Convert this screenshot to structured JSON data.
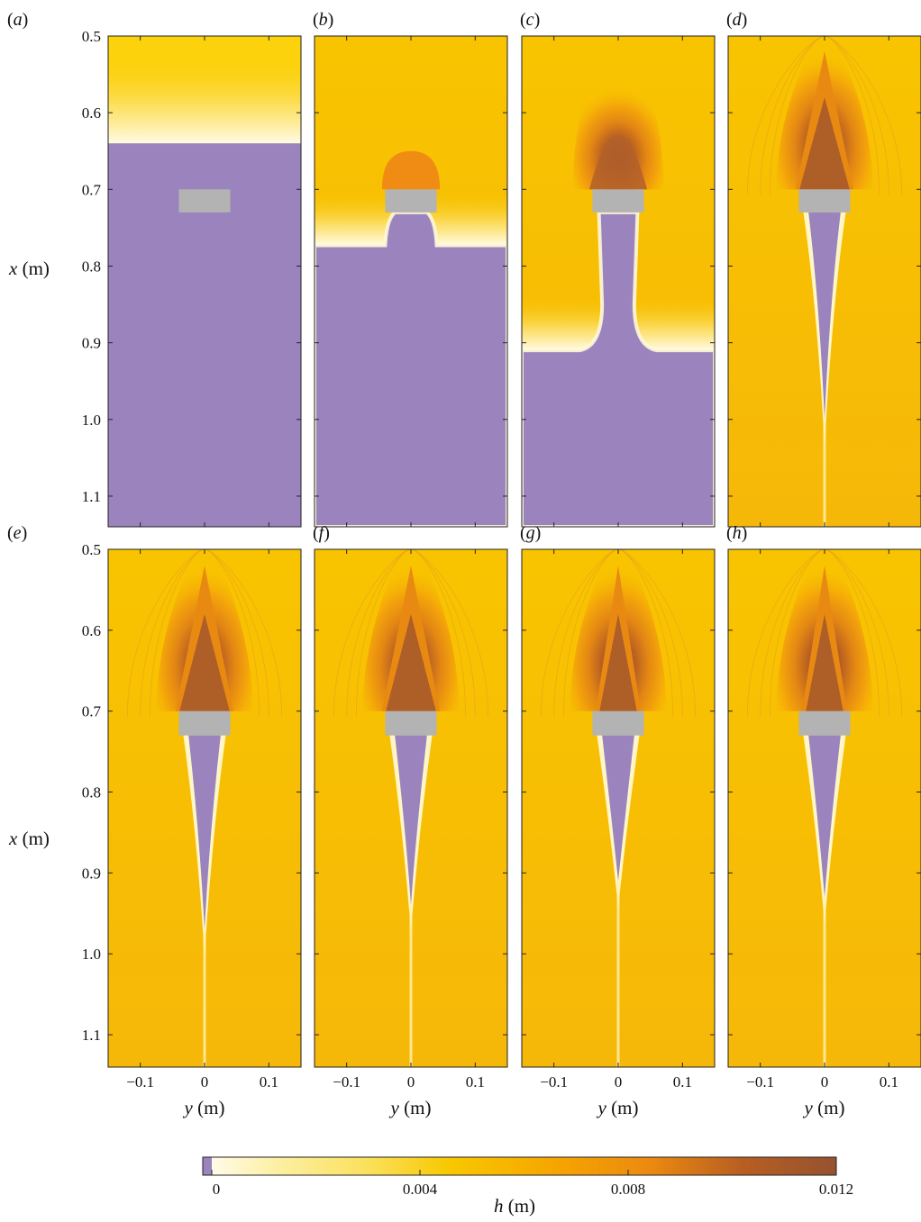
{
  "chart_data": [
    {
      "type": "heatmap",
      "panel_label": "(a)",
      "description_visible": "dry bed advancing front",
      "front_x": 0.64,
      "tail": "none"
    },
    {
      "type": "heatmap",
      "panel_label": "(b)",
      "front_x": 0.773,
      "tail": "none"
    },
    {
      "type": "heatmap",
      "panel_label": "(c)",
      "front_x": 0.91,
      "tail": "none"
    },
    {
      "type": "heatmap",
      "panel_label": "(d)",
      "tail_end_x": 1.0,
      "tail": "wake"
    },
    {
      "type": "heatmap",
      "panel_label": "(e)",
      "tail_end_x": 0.97,
      "tail": "wake"
    },
    {
      "type": "heatmap",
      "panel_label": "(f)",
      "tail_end_x": 0.94,
      "tail": "wake"
    },
    {
      "type": "heatmap",
      "panel_label": "(g)",
      "tail_end_x": 0.91,
      "tail": "wake"
    },
    {
      "type": "heatmap",
      "panel_label": "(h)",
      "tail_end_x": 0.93,
      "tail": "wake"
    }
  ],
  "axes": {
    "x_label": "x (m)",
    "x_var": "x",
    "x_unit": "(m)",
    "y_label": "y (m)",
    "y_var": "y",
    "y_unit": "(m)",
    "x_range": [
      0.5,
      1.14
    ],
    "y_range": [
      -0.15,
      0.15
    ],
    "x_ticks": [
      "0.5",
      "0.6",
      "0.7",
      "0.8",
      "0.9",
      "1.0",
      "1.1"
    ],
    "x_tick_values": [
      0.5,
      0.6,
      0.7,
      0.8,
      0.9,
      1.0,
      1.1
    ],
    "y_ticks": [
      "−0.1",
      "0",
      "0.1"
    ],
    "y_tick_values": [
      -0.1,
      0,
      0.1
    ]
  },
  "obstacle": {
    "y_range": [
      -0.04,
      0.04
    ],
    "x_range": [
      0.7,
      0.73
    ],
    "color": "#b3b3b3"
  },
  "colorbar": {
    "var": "h",
    "unit": "(m)",
    "label": "h (m)",
    "ticks": [
      "0",
      "0.004",
      "0.008",
      "0.012"
    ],
    "tick_values": [
      0,
      0.004,
      0.008,
      0.012
    ],
    "range": [
      0,
      0.012
    ],
    "dry_color": "#9b84bd",
    "stops": [
      "#fffbe8",
      "#fbe05c",
      "#f8c800",
      "#f6a500",
      "#ec8a10",
      "#b75e22",
      "#96522f"
    ]
  }
}
